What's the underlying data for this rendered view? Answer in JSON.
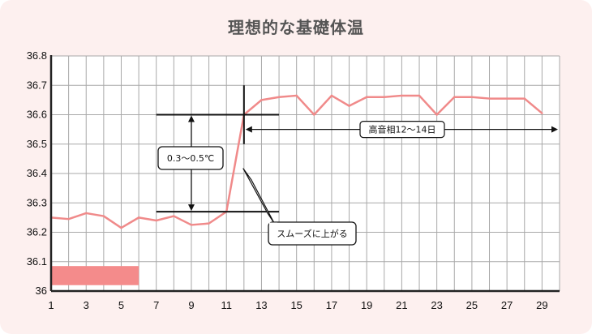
{
  "chart_data": {
    "type": "line",
    "title": "理想的な基礎体温",
    "xlabel": "",
    "ylabel": "",
    "x": [
      1,
      2,
      3,
      4,
      5,
      6,
      7,
      8,
      9,
      10,
      11,
      12,
      13,
      14,
      15,
      16,
      17,
      18,
      19,
      20,
      21,
      22,
      23,
      24,
      25,
      26,
      27,
      28,
      29
    ],
    "values": [
      36.25,
      36.245,
      36.265,
      36.255,
      36.215,
      36.25,
      36.24,
      36.255,
      36.225,
      36.23,
      36.27,
      36.6,
      36.65,
      36.66,
      36.665,
      36.6,
      36.665,
      36.63,
      36.66,
      36.66,
      36.665,
      36.665,
      36.6,
      36.66,
      36.66,
      36.655,
      36.655,
      36.655,
      36.605
    ],
    "xlim": [
      1,
      30
    ],
    "ylim": [
      36.0,
      36.8
    ],
    "x_ticks": [
      "1",
      "3",
      "5",
      "7",
      "9",
      "11",
      "13",
      "15",
      "17",
      "19",
      "21",
      "23",
      "25",
      "27",
      "29"
    ],
    "y_ticks": [
      "36",
      "36.1",
      "36.2",
      "36.3",
      "36.4",
      "36.5",
      "36.6",
      "36.7",
      "36.8"
    ],
    "grid": true,
    "line_color": "#f08a8a",
    "period_bar": {
      "x_start": 1,
      "x_end": 6,
      "y_low": 36.02,
      "y_high": 36.085,
      "color": "#f48b8b"
    },
    "annotations": {
      "temp_rise": "0.3〜0.5℃",
      "smooth_rise": "スムーズに上がる",
      "high_phase": "高音相12〜14日"
    }
  }
}
